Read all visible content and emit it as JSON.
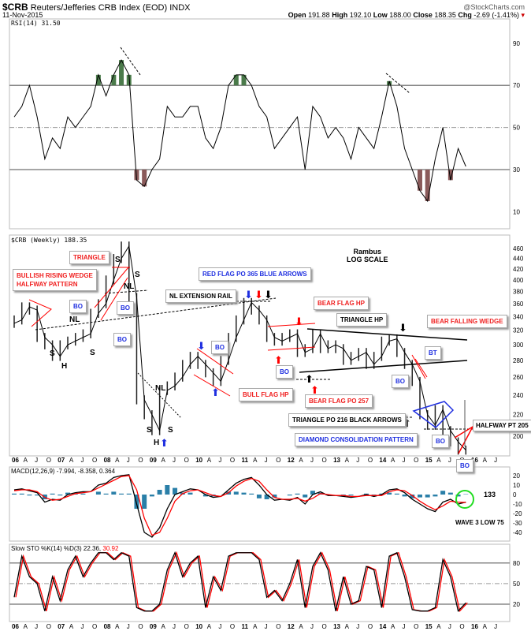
{
  "header": {
    "symbol": "$CRB",
    "name": "Reuters/Jefferies CRB Index (EOD)",
    "exchange": "INDX",
    "date": "11-Nov-2015",
    "copyright": "@StockCharts.com",
    "open_label": "Open",
    "open": "191.88",
    "high_label": "High",
    "high": "192.10",
    "low_label": "Low",
    "low": "188.00",
    "close_label": "Close",
    "close": "188.35",
    "chg_label": "Chg",
    "chg": "-2.69 (-1.41%)",
    "down_color": "#cc0000"
  },
  "annotations": {
    "triangle": "TRIANGLE",
    "wedge1": "BULLISH RISING WEDGE",
    "wedge2": "HALFWAY PATTERN",
    "bo": "BO",
    "bt": "BT",
    "nl": "NL",
    "s": "S",
    "h": "H",
    "nl_rail": "NL EXTENSION RAIL",
    "red_flag": "RED FLAG PO 365 BLUE ARROWS",
    "bull_flag": "BULL FLAG HP",
    "rambus": "Rambus",
    "log_scale": "LOG SCALE",
    "bear_flag_hp": "BEAR FLAG HP",
    "triangle_hp": "TRIANGLE HP",
    "bear_wedge": "BEAR FALLING WEDGE",
    "bear_flag_po": "BEAR FLAG PO 257",
    "triangle_po": "TRIANGLE PO 216 BLACK ARROWS",
    "diamond": "DIAMOND CONSOLIDATION PATTERN",
    "halfway": "HALFWAY PT 205",
    "macd_133": "133",
    "wave3": "WAVE 3 LOW 75"
  },
  "chart_data": [
    {
      "type": "line",
      "title": "RSI(14) 31.50",
      "legend": "RSI(14)",
      "last": "31.50",
      "ylim": [
        0,
        100
      ],
      "yticks": [
        "90",
        "70",
        "50",
        "30",
        "10"
      ],
      "tick_values": [
        90,
        70,
        50,
        30,
        10
      ],
      "overbought": 70,
      "oversold": 30,
      "values": [
        55,
        60,
        70,
        55,
        35,
        45,
        40,
        55,
        50,
        55,
        60,
        75,
        65,
        75,
        82,
        75,
        25,
        22,
        30,
        35,
        60,
        55,
        55,
        60,
        60,
        45,
        40,
        50,
        70,
        75,
        75,
        70,
        60,
        55,
        40,
        45,
        50,
        55,
        30,
        60,
        55,
        45,
        50,
        45,
        35,
        50,
        45,
        40,
        55,
        72,
        60,
        40,
        30,
        20,
        15,
        35,
        50,
        25,
        40,
        31.5
      ]
    },
    {
      "type": "line",
      "title": "$CRB (Weekly) 188.35",
      "legend": "$CRB (Weekly)",
      "last": "188.35",
      "scale": "log",
      "ylim": [
        185,
        475
      ],
      "yticks": [
        "460",
        "440",
        "420",
        "400",
        "380",
        "360",
        "340",
        "320",
        "300",
        "280",
        "260",
        "240",
        "220",
        "200"
      ],
      "tick_values": [
        460,
        440,
        420,
        400,
        380,
        360,
        340,
        320,
        300,
        280,
        260,
        240,
        220,
        200
      ],
      "values": [
        330,
        335,
        355,
        350,
        310,
        300,
        285,
        300,
        305,
        310,
        315,
        345,
        360,
        400,
        440,
        465,
        370,
        235,
        220,
        205,
        245,
        250,
        260,
        275,
        285,
        275,
        265,
        255,
        280,
        310,
        335,
        362,
        350,
        335,
        310,
        305,
        310,
        315,
        290,
        295,
        315,
        295,
        300,
        295,
        280,
        285,
        290,
        275,
        285,
        305,
        308,
        290,
        275,
        255,
        220,
        210,
        225,
        205,
        195,
        188
      ]
    },
    {
      "type": "line",
      "title": "MACD(12,26,9) -7.994, -8.358, 0.364",
      "legend": "MACD(12,26,9)",
      "last": [
        "-7.994",
        "-8.358",
        "0.364"
      ],
      "ylim": [
        -45,
        25
      ],
      "yticks": [
        "20",
        "10",
        "0",
        "-10",
        "-20",
        "-30",
        "-40"
      ],
      "tick_values": [
        20,
        10,
        0,
        -10,
        -20,
        -30,
        -40
      ],
      "series": [
        {
          "name": "MACD",
          "color": "#000000",
          "values": [
            5,
            6,
            4,
            2,
            -8,
            -5,
            -6,
            0,
            2,
            3,
            3,
            10,
            12,
            18,
            20,
            21,
            -10,
            -40,
            -45,
            -35,
            -15,
            0,
            3,
            6,
            5,
            0,
            -3,
            -2,
            5,
            12,
            16,
            18,
            10,
            0,
            -6,
            -5,
            -6,
            -3,
            -10,
            0,
            3,
            -1,
            -1,
            -2,
            -3,
            -2,
            0,
            -2,
            0,
            5,
            6,
            2,
            -5,
            -10,
            -15,
            -18,
            -8,
            -5,
            -10,
            -8
          ]
        },
        {
          "name": "Signal",
          "color": "#ff0000",
          "values": [
            4,
            5,
            5,
            3,
            -3,
            -6,
            -5,
            -2,
            1,
            2,
            3,
            7,
            11,
            15,
            19,
            20,
            5,
            -25,
            -43,
            -40,
            -25,
            -7,
            1,
            4,
            5,
            2,
            -1,
            -2,
            2,
            9,
            14,
            17,
            14,
            5,
            -3,
            -5,
            -5,
            -4,
            -7,
            -4,
            1,
            0,
            -1,
            -1,
            -2,
            -2,
            -1,
            -1,
            -1,
            3,
            5,
            4,
            -1,
            -7,
            -12,
            -16,
            -12,
            -7,
            -8,
            -8.4
          ]
        }
      ]
    },
    {
      "type": "line",
      "title": "Slow STO %K(14) %D(3) 22.36, 30.92",
      "legend": "Slow STO %K(14) %D(3)",
      "last": [
        "22.36",
        "30.92"
      ],
      "ylim": [
        0,
        100
      ],
      "yticks": [
        "80",
        "50",
        "20"
      ],
      "tick_values": [
        80,
        50,
        20
      ],
      "series": [
        {
          "name": "%K",
          "color": "#000000",
          "values": [
            30,
            90,
            60,
            50,
            10,
            60,
            25,
            70,
            90,
            60,
            80,
            95,
            95,
            85,
            95,
            90,
            15,
            10,
            10,
            20,
            70,
            95,
            60,
            80,
            90,
            15,
            60,
            40,
            90,
            95,
            95,
            95,
            85,
            30,
            40,
            25,
            50,
            85,
            15,
            75,
            95,
            70,
            10,
            60,
            20,
            25,
            75,
            70,
            15,
            90,
            95,
            60,
            12,
            10,
            10,
            15,
            85,
            60,
            10,
            22
          ]
        }
      ]
    }
  ],
  "x_axis": {
    "start": "2006-01",
    "step_months": 2,
    "labels": [
      "06",
      "A",
      "J",
      "O",
      "07",
      "A",
      "J",
      "O",
      "08",
      "A",
      "J",
      "O",
      "09",
      "A",
      "J",
      "O",
      "10",
      "A",
      "J",
      "O",
      "11",
      "A",
      "J",
      "O",
      "12",
      "A",
      "J",
      "O",
      "13",
      "A",
      "J",
      "O",
      "14",
      "A",
      "J",
      "O",
      "15",
      "A",
      "J",
      "O",
      "16",
      "A",
      "J"
    ]
  }
}
